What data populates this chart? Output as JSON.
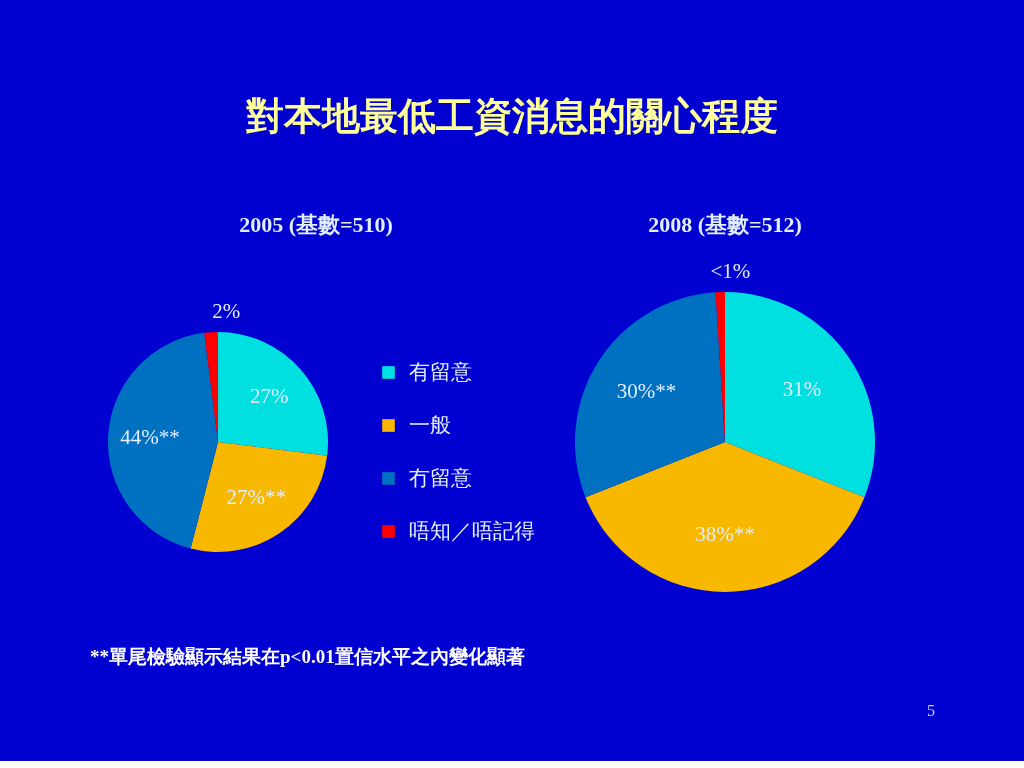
{
  "chart_data": [
    {
      "type": "other",
      "title": "對本地最低工資消息的關心程度",
      "annotations": [
        "**單尾檢驗顯示結果在p<0.01置信水平之內變化顯著",
        "5"
      ]
    },
    {
      "type": "pie",
      "title": "2005 (基數=510)",
      "categories": [
        "有留意",
        "一般",
        "冇留意",
        "唔知／唔記得"
      ],
      "values": [
        27,
        27,
        44,
        2
      ],
      "colors": [
        "#00e0e0",
        "#f8b800",
        "#0070c0",
        "#ff0000"
      ],
      "value_labels": [
        "27%",
        "27%**",
        "44%**",
        "2%"
      ],
      "legend": "right"
    },
    {
      "type": "pie",
      "title": "2008 (基數=512)",
      "values": [
        31,
        38,
        30,
        1
      ],
      "colors": [
        "#00e0e0",
        "#f8b800",
        "#0070c0",
        "#ff0000"
      ],
      "value_labels": [
        "31%",
        "38%**",
        "30%**",
        "<1%"
      ],
      "legend": false
    }
  ]
}
